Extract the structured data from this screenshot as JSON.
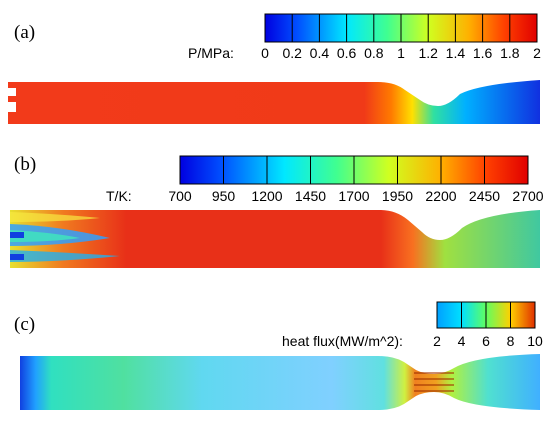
{
  "panels": [
    {
      "label": "(a)",
      "colorbar_title": "P/MPa:",
      "ticks": [
        "0",
        "0.2",
        "0.4",
        "0.6",
        "0.8",
        "1",
        "1.2",
        "1.4",
        "1.6",
        "1.8",
        "2"
      ]
    },
    {
      "label": "(b)",
      "colorbar_title": "T/K:",
      "ticks": [
        "700",
        "950",
        "1200",
        "1450",
        "1700",
        "1950",
        "2200",
        "2450",
        "2700"
      ]
    },
    {
      "label": "(c)",
      "colorbar_title": "heat flux(MW/m^2):",
      "ticks": [
        "2",
        "4",
        "6",
        "8",
        "10"
      ]
    }
  ],
  "colors": {
    "jet": [
      "#0000ff",
      "#0080ff",
      "#00ffff",
      "#80ff80",
      "#ffff00",
      "#ff8000",
      "#ff0000"
    ]
  }
}
